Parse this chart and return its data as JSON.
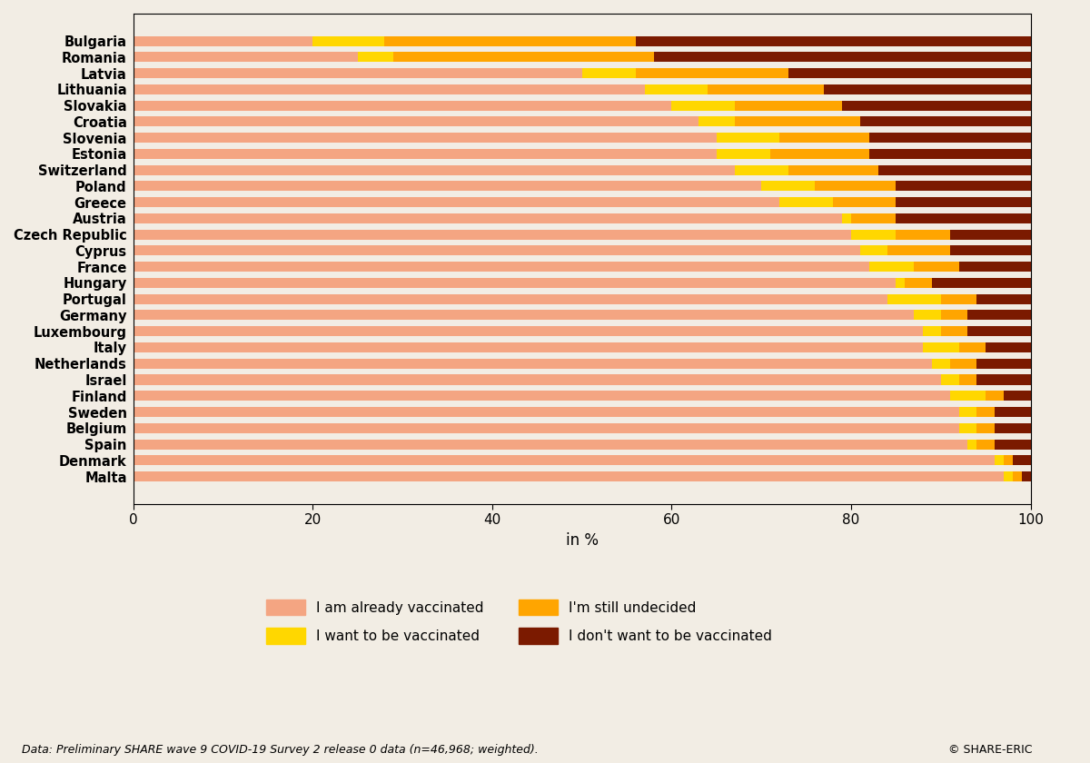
{
  "countries": [
    "Bulgaria",
    "Romania",
    "Latvia",
    "Lithuania",
    "Slovakia",
    "Croatia",
    "Slovenia",
    "Estonia",
    "Switzerland",
    "Poland",
    "Greece",
    "Austria",
    "Czech Republic",
    "Cyprus",
    "France",
    "Hungary",
    "Portugal",
    "Germany",
    "Luxembourg",
    "Italy",
    "Netherlands",
    "Israel",
    "Finland",
    "Sweden",
    "Belgium",
    "Spain",
    "Denmark",
    "Malta"
  ],
  "vaccinated": [
    20,
    25,
    50,
    57,
    60,
    63,
    65,
    65,
    67,
    70,
    72,
    79,
    80,
    81,
    82,
    85,
    84,
    87,
    88,
    88,
    89,
    90,
    91,
    92,
    92,
    93,
    96,
    97
  ],
  "want_vaccinated": [
    8,
    4,
    6,
    7,
    7,
    4,
    7,
    6,
    6,
    6,
    6,
    1,
    5,
    3,
    5,
    1,
    6,
    3,
    2,
    4,
    2,
    2,
    4,
    2,
    2,
    1,
    1,
    1
  ],
  "undecided": [
    28,
    29,
    17,
    13,
    12,
    14,
    10,
    11,
    10,
    9,
    7,
    5,
    6,
    7,
    5,
    3,
    4,
    3,
    3,
    3,
    3,
    2,
    2,
    2,
    2,
    2,
    1,
    1
  ],
  "dont_want": [
    44,
    42,
    27,
    23,
    21,
    19,
    18,
    18,
    17,
    15,
    15,
    15,
    9,
    9,
    8,
    11,
    6,
    7,
    7,
    5,
    6,
    6,
    3,
    4,
    4,
    4,
    2,
    1
  ],
  "color_vaccinated": "#F4A582",
  "color_want": "#FFD700",
  "color_undecided": "#FFA500",
  "color_dont_want": "#7B1A00",
  "xlabel": "in %",
  "xlim": [
    0,
    100
  ],
  "xticks": [
    0,
    20,
    40,
    60,
    80,
    100
  ],
  "legend_labels": [
    "I am already vaccinated",
    "I want to be vaccinated",
    "I'm still undecided",
    "I don't want to be vaccinated"
  ],
  "footnote": "Data: Preliminary SHARE wave 9 COVID-19 Survey 2 release 0 data (n=46,968; weighted).",
  "copyright": "© SHARE-ERIC",
  "background_color": "#F2EDE4",
  "plot_bg_color": "#F2EDE4"
}
